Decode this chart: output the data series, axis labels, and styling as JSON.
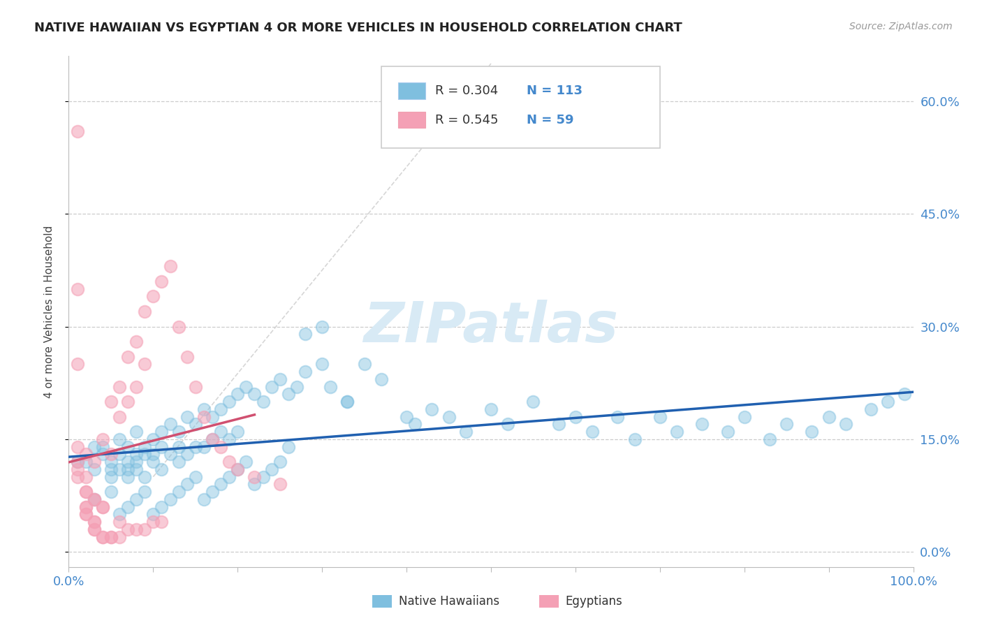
{
  "title": "NATIVE HAWAIIAN VS EGYPTIAN 4 OR MORE VEHICLES IN HOUSEHOLD CORRELATION CHART",
  "source": "Source: ZipAtlas.com",
  "ylabel": "4 or more Vehicles in Household",
  "ytick_labels": [
    "0.0%",
    "15.0%",
    "30.0%",
    "45.0%",
    "60.0%"
  ],
  "ytick_values": [
    0,
    15,
    30,
    45,
    60
  ],
  "xlim": [
    0,
    100
  ],
  "ylim": [
    -2,
    66
  ],
  "legend_blue_r": "R = 0.304",
  "legend_blue_n": "N = 113",
  "legend_pink_r": "R = 0.545",
  "legend_pink_n": "N = 59",
  "blue_color": "#7fbfdf",
  "pink_color": "#f4a0b5",
  "blue_line_color": "#2060b0",
  "pink_line_color": "#d05070",
  "diag_line_color": "#cccccc",
  "watermark_color": "#d8eaf5",
  "background_color": "#ffffff",
  "blue_scatter_x": [
    1,
    2,
    3,
    3,
    4,
    4,
    5,
    5,
    5,
    6,
    6,
    6,
    7,
    7,
    7,
    7,
    8,
    8,
    8,
    8,
    9,
    9,
    9,
    10,
    10,
    10,
    11,
    11,
    11,
    12,
    12,
    13,
    13,
    13,
    14,
    14,
    15,
    15,
    16,
    16,
    17,
    17,
    18,
    18,
    19,
    19,
    20,
    20,
    21,
    22,
    23,
    24,
    25,
    26,
    27,
    28,
    30,
    31,
    33,
    35,
    37,
    40,
    41,
    43,
    45,
    47,
    50,
    52,
    55,
    58,
    60,
    62,
    65,
    67,
    70,
    72,
    75,
    78,
    80,
    83,
    85,
    88,
    90,
    92,
    95,
    97,
    99,
    3,
    5,
    6,
    7,
    8,
    9,
    10,
    11,
    12,
    13,
    14,
    15,
    16,
    17,
    18,
    19,
    20,
    21,
    22,
    23,
    24,
    25,
    26,
    28,
    30,
    33
  ],
  "blue_scatter_y": [
    12,
    12,
    11,
    14,
    14,
    13,
    11,
    12,
    10,
    13,
    11,
    15,
    14,
    12,
    11,
    10,
    16,
    13,
    12,
    11,
    14,
    13,
    10,
    15,
    13,
    12,
    16,
    14,
    11,
    17,
    13,
    16,
    14,
    12,
    18,
    13,
    17,
    14,
    19,
    14,
    18,
    15,
    19,
    16,
    20,
    15,
    21,
    16,
    22,
    21,
    20,
    22,
    23,
    21,
    22,
    24,
    25,
    22,
    20,
    25,
    23,
    18,
    17,
    19,
    18,
    16,
    19,
    17,
    20,
    17,
    18,
    16,
    18,
    15,
    18,
    16,
    17,
    16,
    18,
    15,
    17,
    16,
    18,
    17,
    19,
    20,
    21,
    7,
    8,
    5,
    6,
    7,
    8,
    5,
    6,
    7,
    8,
    9,
    10,
    7,
    8,
    9,
    10,
    11,
    12,
    9,
    10,
    11,
    12,
    14,
    29,
    30,
    20
  ],
  "pink_scatter_x": [
    1,
    1,
    1,
    1,
    2,
    2,
    2,
    2,
    2,
    3,
    3,
    3,
    3,
    4,
    4,
    4,
    5,
    5,
    5,
    6,
    6,
    6,
    7,
    7,
    8,
    8,
    9,
    9,
    10,
    11,
    12,
    13,
    14,
    15,
    16,
    17,
    18,
    19,
    20,
    22,
    25,
    2,
    2,
    3,
    3,
    4,
    5,
    6,
    7,
    8,
    9,
    10,
    11,
    1,
    1,
    1,
    2,
    3,
    4
  ],
  "pink_scatter_y": [
    10,
    11,
    12,
    14,
    5,
    6,
    8,
    10,
    13,
    3,
    4,
    7,
    12,
    2,
    6,
    15,
    2,
    13,
    20,
    4,
    18,
    22,
    20,
    26,
    22,
    28,
    25,
    32,
    34,
    36,
    38,
    30,
    26,
    22,
    18,
    15,
    14,
    12,
    11,
    10,
    9,
    5,
    6,
    3,
    4,
    2,
    2,
    2,
    3,
    3,
    3,
    4,
    4,
    56,
    35,
    25,
    8,
    7,
    6
  ]
}
